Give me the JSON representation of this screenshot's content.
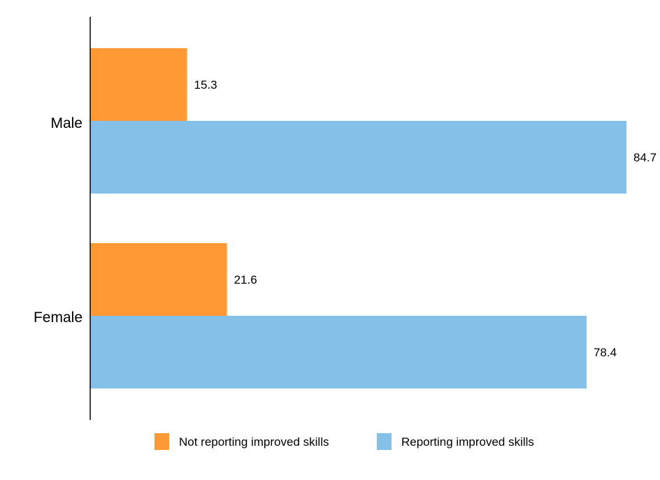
{
  "chart_data": {
    "type": "bar",
    "orientation": "horizontal",
    "categories": [
      "Male",
      "Female"
    ],
    "series": [
      {
        "name": "Not reporting improved skills",
        "color": "#FF9933",
        "values": [
          15.3,
          21.6
        ]
      },
      {
        "name": "Reporting improved skills",
        "color": "#85C0E9",
        "values": [
          84.7,
          78.4
        ]
      }
    ],
    "xlim": [
      0,
      100
    ],
    "grid": false,
    "legend": "bottom-center",
    "title": "",
    "xlabel": "",
    "ylabel": ""
  }
}
